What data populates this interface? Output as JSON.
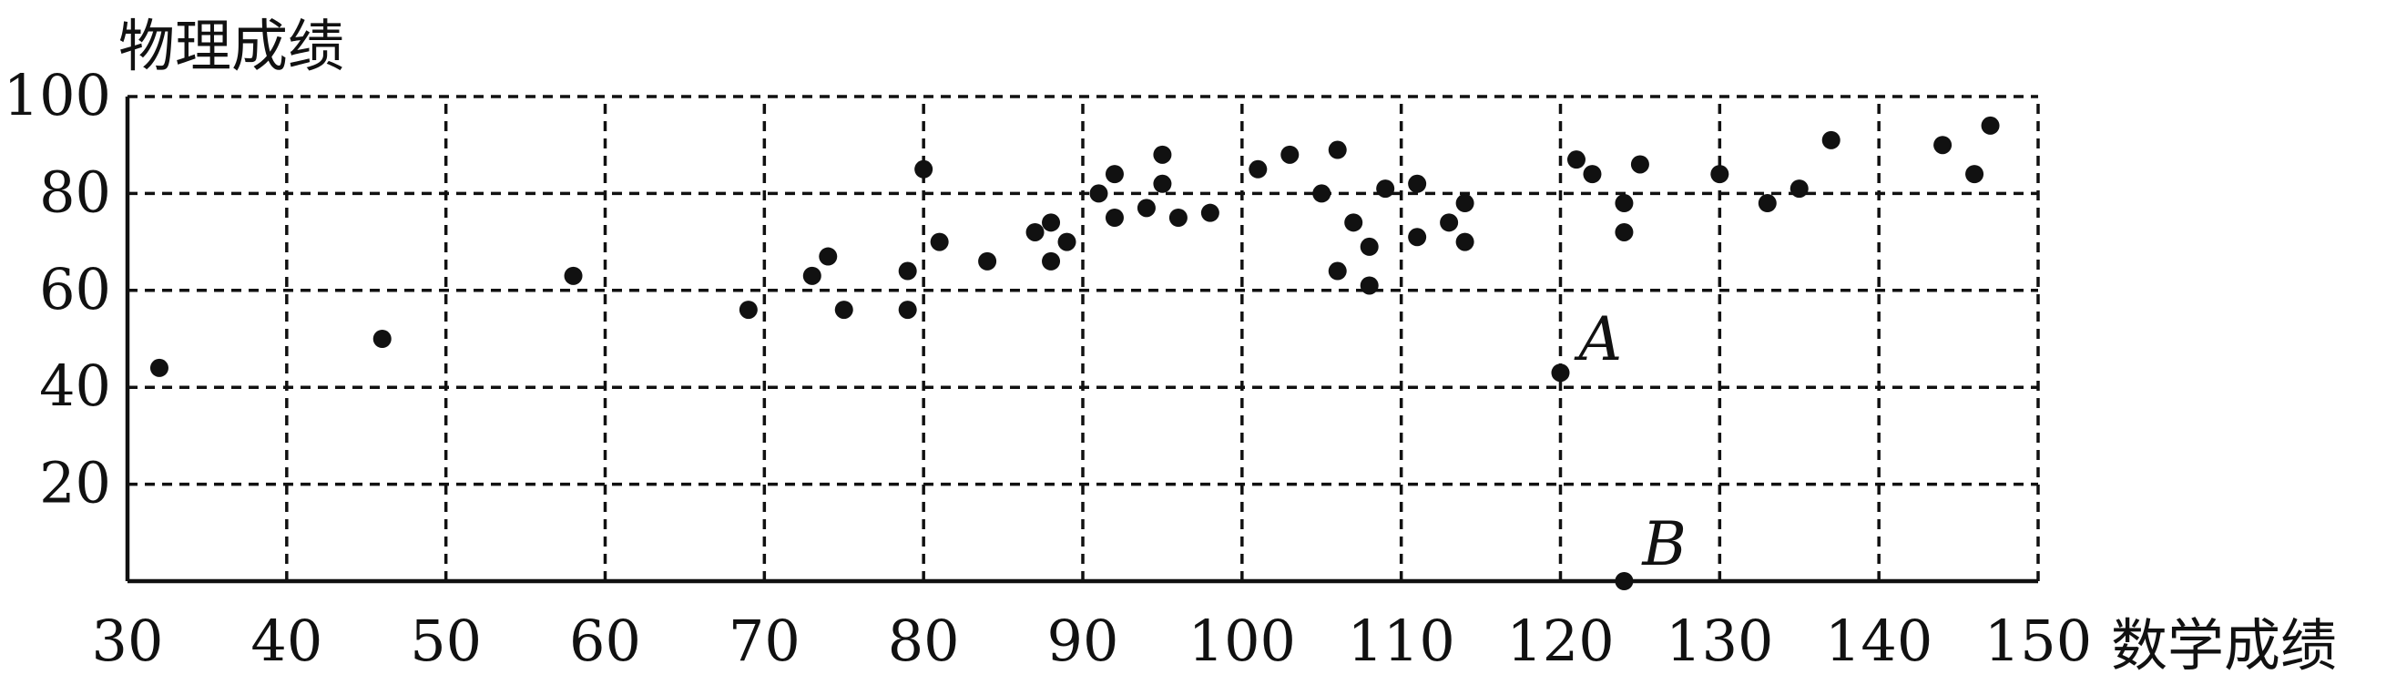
{
  "chart_data": {
    "type": "scatter",
    "xlabel": "数学成绩",
    "ylabel": "物理成绩",
    "xlim": [
      30,
      150
    ],
    "ylim": [
      0,
      100
    ],
    "x_ticks": [
      30,
      40,
      50,
      60,
      70,
      80,
      90,
      100,
      110,
      120,
      130,
      140,
      150
    ],
    "y_ticks": [
      20,
      40,
      60,
      80,
      100
    ],
    "grid": true,
    "series": [
      {
        "points": [
          [
            32,
            44
          ],
          [
            46,
            50
          ],
          [
            58,
            63
          ],
          [
            69,
            56
          ],
          [
            73,
            63
          ],
          [
            74,
            67
          ],
          [
            75,
            56
          ],
          [
            79,
            56
          ],
          [
            79,
            64
          ],
          [
            80,
            85
          ],
          [
            81,
            70
          ],
          [
            84,
            66
          ],
          [
            87,
            72
          ],
          [
            88,
            66
          ],
          [
            88,
            74
          ],
          [
            89,
            70
          ],
          [
            91,
            80
          ],
          [
            92,
            75
          ],
          [
            92,
            84
          ],
          [
            94,
            77
          ],
          [
            95,
            82
          ],
          [
            95,
            88
          ],
          [
            96,
            75
          ],
          [
            98,
            76
          ],
          [
            101,
            85
          ],
          [
            103,
            88
          ],
          [
            105,
            80
          ],
          [
            106,
            89
          ],
          [
            106,
            64
          ],
          [
            107,
            74
          ],
          [
            108,
            69
          ],
          [
            108,
            61
          ],
          [
            109,
            81
          ],
          [
            111,
            71
          ],
          [
            111,
            82
          ],
          [
            113,
            74
          ],
          [
            114,
            70
          ],
          [
            114,
            78
          ],
          [
            121,
            87
          ],
          [
            122,
            84
          ],
          [
            124,
            78
          ],
          [
            124,
            72
          ],
          [
            125,
            86
          ],
          [
            130,
            84
          ],
          [
            133,
            78
          ],
          [
            135,
            81
          ],
          [
            137,
            91
          ],
          [
            144,
            90
          ],
          [
            146,
            84
          ],
          [
            147,
            94
          ],
          [
            120,
            43
          ],
          [
            124,
            0
          ]
        ]
      }
    ],
    "annotations": [
      {
        "label": "A",
        "x": 120,
        "y": 43
      },
      {
        "label": "B",
        "x": 124,
        "y": 0
      }
    ]
  }
}
